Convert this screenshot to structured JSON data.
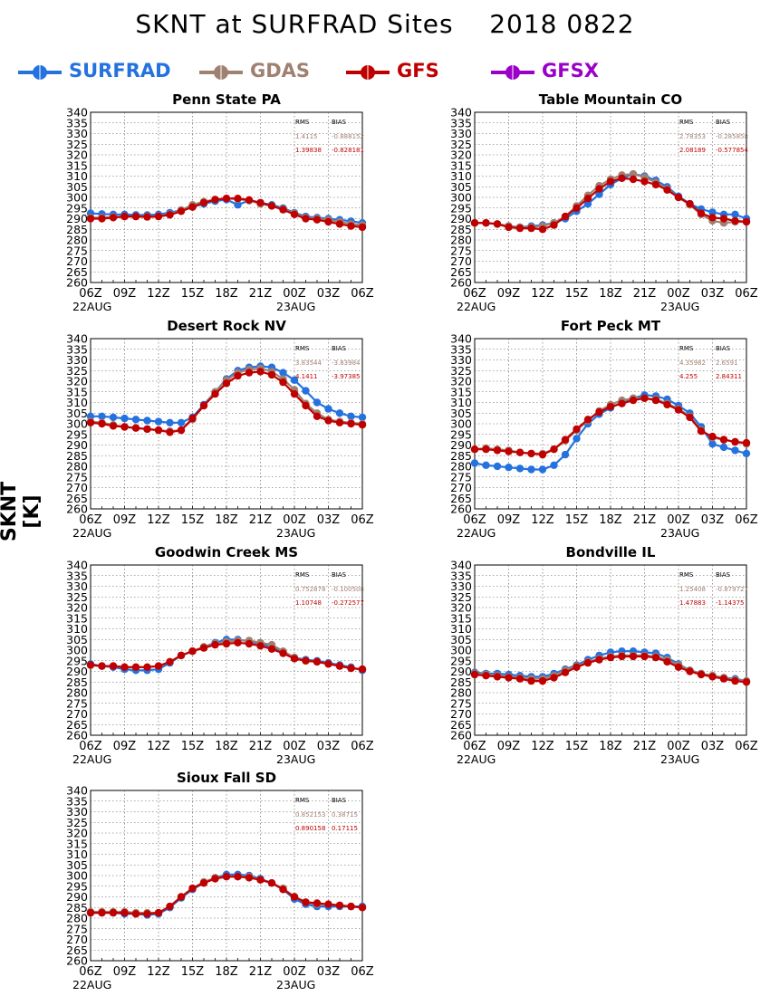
{
  "title": "SKNT at SURFRAD Sites    2018 0822",
  "ylabel": "SKNT [K]",
  "colors": {
    "SURFRAD": "#2472e0",
    "GDAS": "#a08070",
    "GFS": "#c00000",
    "GFSX": "#9a00c8"
  },
  "legend": [
    {
      "name": "SURFRAD",
      "color": "#2472e0"
    },
    {
      "name": "GDAS",
      "color": "#a08070"
    },
    {
      "name": "GFS",
      "color": "#c00000"
    },
    {
      "name": "GFSX",
      "color": "#9a00c8"
    }
  ],
  "stats_header": {
    "rms": "RMS",
    "bias": "BIAS"
  },
  "chart_data": [
    {
      "type": "line",
      "title": "Penn State PA",
      "x": [
        0,
        1,
        2,
        3,
        4,
        5,
        6,
        7,
        8,
        9,
        10,
        11,
        12,
        13,
        14,
        15,
        16,
        17,
        18,
        19,
        20,
        21,
        22,
        23,
        24
      ],
      "x_tick_labels": [
        "06Z",
        "09Z",
        "12Z",
        "15Z",
        "18Z",
        "21Z",
        "00Z",
        "03Z",
        "06Z"
      ],
      "date_labels": [
        "22AUG",
        "23AUG"
      ],
      "ylim": [
        260,
        340
      ],
      "y_ticks": [
        260,
        265,
        270,
        275,
        280,
        285,
        290,
        295,
        300,
        305,
        310,
        315,
        320,
        325,
        330,
        335,
        340
      ],
      "stats": [
        {
          "series": "GDAS",
          "rms": "1.4115",
          "bias": "-0.888152"
        },
        {
          "series": "GFS",
          "rms": "1.39838",
          "bias": "-0.828181"
        }
      ],
      "series": [
        {
          "name": "SURFRAD",
          "values": [
            292.5,
            292.2,
            292,
            292,
            291.8,
            291.7,
            292,
            292.8,
            294,
            295.5,
            297,
            298.2,
            299,
            296.5,
            298.5,
            297.5,
            296.5,
            295,
            292.8,
            291,
            290.5,
            290,
            289.5,
            288.8,
            288
          ]
        },
        {
          "name": "GDAS",
          "values": [
            290.5,
            290.5,
            290.8,
            291,
            291,
            291,
            291.2,
            292,
            294,
            296.5,
            298,
            299,
            299.5,
            299.2,
            298.5,
            297,
            296,
            294.5,
            292.5,
            290.5,
            290,
            289.5,
            288.5,
            287.5,
            287
          ]
        },
        {
          "name": "GFS",
          "values": [
            290,
            290,
            290.5,
            291,
            291,
            290.8,
            291,
            291.8,
            293.5,
            295.5,
            297.5,
            299,
            299.5,
            299.5,
            298.8,
            297.5,
            296,
            294.2,
            292,
            290,
            289.5,
            288.5,
            287.5,
            286.5,
            286
          ]
        }
      ]
    },
    {
      "type": "line",
      "title": "Table Mountain CO",
      "x": [
        0,
        1,
        2,
        3,
        4,
        5,
        6,
        7,
        8,
        9,
        10,
        11,
        12,
        13,
        14,
        15,
        16,
        17,
        18,
        19,
        20,
        21,
        22,
        23,
        24
      ],
      "x_tick_labels": [
        "06Z",
        "09Z",
        "12Z",
        "15Z",
        "18Z",
        "21Z",
        "00Z",
        "03Z",
        "06Z"
      ],
      "date_labels": [
        "22AUG",
        "23AUG"
      ],
      "ylim": [
        260,
        340
      ],
      "y_ticks": [
        260,
        265,
        270,
        275,
        280,
        285,
        290,
        295,
        300,
        305,
        310,
        315,
        320,
        325,
        330,
        335,
        340
      ],
      "stats": [
        {
          "series": "GDAS",
          "rms": "2.78353",
          "bias": "-0.285858"
        },
        {
          "series": "GFS",
          "rms": "2.08189",
          "bias": "-0.577854"
        }
      ],
      "series": [
        {
          "name": "SURFRAD",
          "values": [
            288,
            288,
            287.5,
            286.5,
            286,
            286.5,
            287,
            288,
            290,
            293.5,
            297,
            301.5,
            306,
            309,
            311,
            310,
            308,
            305,
            300.5,
            297,
            294.5,
            293,
            292,
            292,
            290
          ]
        },
        {
          "name": "GDAS",
          "values": [
            288,
            288,
            287.5,
            286.5,
            286,
            286,
            286.5,
            288,
            291,
            296,
            301,
            305.5,
            308.5,
            310.5,
            311,
            309.5,
            307,
            304,
            300,
            296.5,
            292,
            289,
            288,
            288.5,
            288.5
          ]
        },
        {
          "name": "GFS",
          "values": [
            288,
            288,
            287.5,
            286,
            285.5,
            285.5,
            285,
            287,
            291,
            295,
            299.5,
            304,
            307.5,
            309,
            308.5,
            307.5,
            306,
            303.5,
            300,
            297,
            292.5,
            290.5,
            290,
            289,
            288.5
          ]
        }
      ]
    },
    {
      "type": "line",
      "title": "Desert Rock NV",
      "x": [
        0,
        1,
        2,
        3,
        4,
        5,
        6,
        7,
        8,
        9,
        10,
        11,
        12,
        13,
        14,
        15,
        16,
        17,
        18,
        19,
        20,
        21,
        22,
        23,
        24
      ],
      "x_tick_labels": [
        "06Z",
        "09Z",
        "12Z",
        "15Z",
        "18Z",
        "21Z",
        "00Z",
        "03Z",
        "06Z"
      ],
      "date_labels": [
        "22AUG",
        "23AUG"
      ],
      "ylim": [
        260,
        340
      ],
      "y_ticks": [
        260,
        265,
        270,
        275,
        280,
        285,
        290,
        295,
        300,
        305,
        310,
        315,
        320,
        325,
        330,
        335,
        340
      ],
      "stats": [
        {
          "series": "GDAS",
          "rms": "3.83544",
          "bias": "-3.83984"
        },
        {
          "series": "GFS",
          "rms": "4.1411",
          "bias": "-3.97385"
        }
      ],
      "series": [
        {
          "name": "SURFRAD",
          "values": [
            303.5,
            303.5,
            303,
            302.5,
            302,
            301.5,
            301,
            300.5,
            300.5,
            303,
            309,
            315,
            321,
            325,
            326.5,
            327,
            326.5,
            324,
            320.5,
            315.5,
            310,
            307,
            305,
            303.5,
            303
          ]
        },
        {
          "name": "GDAS",
          "values": [
            301,
            300.5,
            299.5,
            298.5,
            298,
            297.5,
            297,
            296.5,
            297,
            302,
            308.5,
            315,
            320.5,
            324,
            325.5,
            326,
            324.5,
            321,
            316,
            309.5,
            305,
            302,
            301,
            300.5,
            300
          ]
        },
        {
          "name": "GFS",
          "values": [
            300.5,
            300,
            299,
            298.5,
            298,
            297.5,
            297,
            296,
            297,
            302.5,
            308.5,
            314,
            319,
            322.5,
            324,
            324.5,
            323,
            319.5,
            314,
            308.5,
            303.5,
            301.5,
            300.5,
            300,
            299.5
          ]
        }
      ]
    },
    {
      "type": "line",
      "title": "Fort Peck MT",
      "x": [
        0,
        1,
        2,
        3,
        4,
        5,
        6,
        7,
        8,
        9,
        10,
        11,
        12,
        13,
        14,
        15,
        16,
        17,
        18,
        19,
        20,
        21,
        22,
        23,
        24
      ],
      "x_tick_labels": [
        "06Z",
        "09Z",
        "12Z",
        "15Z",
        "18Z",
        "21Z",
        "00Z",
        "03Z",
        "06Z"
      ],
      "date_labels": [
        "22AUG",
        "23AUG"
      ],
      "ylim": [
        260,
        340
      ],
      "y_ticks": [
        260,
        265,
        270,
        275,
        280,
        285,
        290,
        295,
        300,
        305,
        310,
        315,
        320,
        325,
        330,
        335,
        340
      ],
      "stats": [
        {
          "series": "GDAS",
          "rms": "4.35982",
          "bias": "2.6591"
        },
        {
          "series": "GFS",
          "rms": "4.255",
          "bias": "2.84311"
        }
      ],
      "series": [
        {
          "name": "SURFRAD",
          "values": [
            281.5,
            280.5,
            280,
            279.5,
            279,
            278.5,
            278.5,
            280.5,
            285.5,
            293,
            300,
            304.5,
            307.5,
            310,
            312,
            313.5,
            313,
            311.5,
            308.5,
            305,
            298.5,
            290.5,
            289,
            287.5,
            286
          ]
        },
        {
          "name": "GDAS",
          "values": [
            288,
            288.5,
            288,
            287.5,
            286.5,
            286,
            286,
            288,
            292,
            297,
            301.5,
            306,
            309,
            311,
            312,
            312,
            311.5,
            309.5,
            307,
            303.5,
            297,
            293.5,
            292.5,
            291.5,
            290.5
          ]
        },
        {
          "name": "GFS",
          "values": [
            288,
            288,
            287.5,
            287,
            286.5,
            286,
            285.5,
            288,
            292.5,
            297.5,
            302,
            305.5,
            308,
            309.5,
            311,
            312,
            311,
            309,
            306.5,
            303,
            296.5,
            294,
            292.5,
            291.5,
            291
          ]
        }
      ]
    },
    {
      "type": "line",
      "title": "Goodwin Creek MS",
      "x": [
        0,
        1,
        2,
        3,
        4,
        5,
        6,
        7,
        8,
        9,
        10,
        11,
        12,
        13,
        14,
        15,
        16,
        17,
        18,
        19,
        20,
        21,
        22,
        23,
        24
      ],
      "x_tick_labels": [
        "06Z",
        "09Z",
        "12Z",
        "15Z",
        "18Z",
        "21Z",
        "00Z",
        "03Z",
        "06Z"
      ],
      "date_labels": [
        "22AUG",
        "23AUG"
      ],
      "ylim": [
        260,
        340
      ],
      "y_ticks": [
        260,
        265,
        270,
        275,
        280,
        285,
        290,
        295,
        300,
        305,
        310,
        315,
        320,
        325,
        330,
        335,
        340
      ],
      "stats": [
        {
          "series": "GDAS",
          "rms": "0.752878",
          "bias": "-0.100508"
        },
        {
          "series": "GFS",
          "rms": "1.10748",
          "bias": "-0.272577"
        }
      ],
      "series": [
        {
          "name": "SURFRAD",
          "values": [
            293.5,
            292.5,
            292,
            291,
            290.5,
            290.5,
            291,
            294,
            297.5,
            299.5,
            301.5,
            303.5,
            305,
            305,
            304,
            303,
            301.5,
            299,
            296.5,
            295.5,
            295,
            294,
            293,
            292,
            290.5
          ]
        },
        {
          "name": "GDAS",
          "values": [
            293,
            292.5,
            292.5,
            292,
            292,
            292,
            292.5,
            294.5,
            297.5,
            299.5,
            301.5,
            303,
            304,
            304.5,
            304.5,
            303.5,
            302.5,
            299.5,
            296.5,
            295,
            294.5,
            293.5,
            292.5,
            291.5,
            291
          ]
        },
        {
          "name": "GFS",
          "values": [
            293,
            292.5,
            292.5,
            292,
            292,
            292,
            292.5,
            294.5,
            297.5,
            299.5,
            301,
            302.5,
            303,
            303.5,
            303,
            302,
            300.5,
            298.5,
            296,
            295,
            294.5,
            293.5,
            292.5,
            291.5,
            291
          ]
        }
      ]
    },
    {
      "type": "line",
      "title": "Bondville IL",
      "x": [
        0,
        1,
        2,
        3,
        4,
        5,
        6,
        7,
        8,
        9,
        10,
        11,
        12,
        13,
        14,
        15,
        16,
        17,
        18,
        19,
        20,
        21,
        22,
        23,
        24
      ],
      "x_tick_labels": [
        "06Z",
        "09Z",
        "12Z",
        "15Z",
        "18Z",
        "21Z",
        "00Z",
        "03Z",
        "06Z"
      ],
      "date_labels": [
        "22AUG",
        "23AUG"
      ],
      "ylim": [
        260,
        340
      ],
      "y_ticks": [
        260,
        265,
        270,
        275,
        280,
        285,
        290,
        295,
        300,
        305,
        310,
        315,
        320,
        325,
        330,
        335,
        340
      ],
      "stats": [
        {
          "series": "GDAS",
          "rms": "1.25408",
          "bias": "-0.879727"
        },
        {
          "series": "GFS",
          "rms": "1.47883",
          "bias": "-1.14375"
        }
      ],
      "series": [
        {
          "name": "SURFRAD",
          "values": [
            289.5,
            289,
            289,
            288.5,
            288,
            287.5,
            287.5,
            289,
            291,
            293,
            295.5,
            297.5,
            299,
            299.5,
            299.5,
            299,
            298.5,
            296.5,
            293.5,
            290.5,
            289,
            288,
            287,
            286.5,
            285.5
          ]
        },
        {
          "name": "GDAS",
          "values": [
            289,
            288.5,
            288,
            287.5,
            287,
            286.5,
            286.5,
            288,
            290.5,
            292.5,
            294.5,
            296,
            297,
            297.5,
            297.5,
            297.5,
            297,
            295.5,
            293,
            290.5,
            289,
            288,
            287,
            286,
            285.5
          ]
        },
        {
          "name": "GFS",
          "values": [
            288.5,
            288,
            287.5,
            287,
            286.5,
            285.5,
            285.5,
            287,
            289.5,
            292,
            294,
            295.5,
            296.5,
            297,
            297,
            297,
            296.5,
            294.5,
            292,
            290,
            288.5,
            287.5,
            286.5,
            285.5,
            285
          ]
        }
      ]
    },
    {
      "type": "line",
      "title": "Sioux Fall SD",
      "x": [
        0,
        1,
        2,
        3,
        4,
        5,
        6,
        7,
        8,
        9,
        10,
        11,
        12,
        13,
        14,
        15,
        16,
        17,
        18,
        19,
        20,
        21,
        22,
        23,
        24
      ],
      "x_tick_labels": [
        "06Z",
        "09Z",
        "12Z",
        "15Z",
        "18Z",
        "21Z",
        "00Z",
        "03Z",
        "06Z"
      ],
      "date_labels": [
        "22AUG",
        "23AUG"
      ],
      "ylim": [
        260,
        340
      ],
      "y_ticks": [
        260,
        265,
        270,
        275,
        280,
        285,
        290,
        295,
        300,
        305,
        310,
        315,
        320,
        325,
        330,
        335,
        340
      ],
      "stats": [
        {
          "series": "GDAS",
          "rms": "0.852153",
          "bias": "0.38715"
        },
        {
          "series": "GFS",
          "rms": "0.890158",
          "bias": "0.17115"
        }
      ],
      "series": [
        {
          "name": "SURFRAD",
          "values": [
            282.5,
            282.5,
            282.5,
            282,
            282,
            281.5,
            282,
            285,
            289.5,
            293.5,
            296.5,
            299,
            300.5,
            300.5,
            300,
            298.5,
            296.5,
            293.5,
            289,
            286.5,
            285.5,
            285.5,
            285.5,
            285.5,
            285.5
          ]
        },
        {
          "name": "GDAS",
          "values": [
            283,
            283,
            283,
            283,
            282.5,
            282.5,
            282.5,
            285.5,
            290,
            294,
            297,
            299,
            299.5,
            299.5,
            299.5,
            298,
            296.5,
            294,
            290,
            287.5,
            286.5,
            286.5,
            286,
            285.5,
            285
          ]
        },
        {
          "name": "GFS",
          "values": [
            282.5,
            282.5,
            282.5,
            282.5,
            282,
            282,
            282.5,
            285.5,
            290,
            294,
            296.5,
            298.5,
            299.5,
            299.5,
            299,
            298,
            296.5,
            293.5,
            290,
            287.5,
            287,
            286.5,
            286,
            285.5,
            285
          ]
        }
      ]
    }
  ]
}
